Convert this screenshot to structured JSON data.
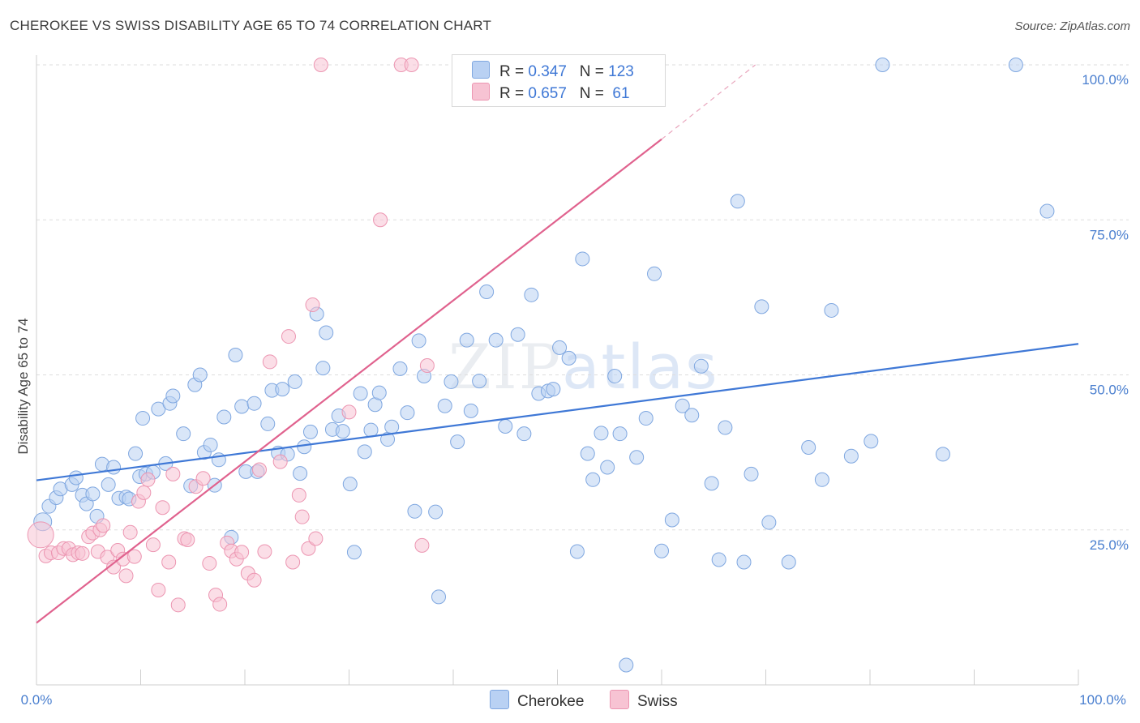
{
  "title": "CHEROKEE VS SWISS DISABILITY AGE 65 TO 74 CORRELATION CHART",
  "source": "Source: ZipAtlas.com",
  "watermark": {
    "zip": "ZIP",
    "atlas": "atlas"
  },
  "legend_top": [
    {
      "r_label": "R = ",
      "r_value": "0.347",
      "n_label": "N = ",
      "n_value": "123",
      "fill": "#b9d1f3",
      "stroke": "#7fa7e0"
    },
    {
      "r_label": "R = ",
      "r_value": "0.657",
      "n_label": "N = ",
      "n_value": " 61",
      "fill": "#f7c3d3",
      "stroke": "#ec95b1"
    }
  ],
  "chart_data": {
    "type": "scatter",
    "title": "CHEROKEE VS SWISS DISABILITY AGE 65 TO 74 CORRELATION CHART",
    "xlabel": "",
    "ylabel": "Disability Age 65 to 74",
    "xlim": [
      0,
      100
    ],
    "ylim": [
      0,
      100
    ],
    "x_tick_labels": [
      "0.0%",
      "100.0%"
    ],
    "y_tick_labels": [
      "25.0%",
      "50.0%",
      "75.0%",
      "100.0%"
    ],
    "y_ticks": [
      25,
      50,
      75,
      100
    ],
    "grid": "horizontal dashed",
    "legend": "bottom-center",
    "series": [
      {
        "name": "Cherokee",
        "color": "#3f78d6",
        "fill": "#b9d1f3",
        "r": "0.347",
        "n": "123",
        "trend": {
          "x": [
            0,
            100
          ],
          "y": [
            33.0,
            55.0
          ]
        },
        "points": [
          [
            0.6,
            26.3
          ],
          [
            1.2,
            28.8
          ],
          [
            1.9,
            30.2
          ],
          [
            2.3,
            31.6
          ],
          [
            3.4,
            32.3
          ],
          [
            3.8,
            33.4
          ],
          [
            4.4,
            30.6
          ],
          [
            4.8,
            29.2
          ],
          [
            5.4,
            30.8
          ],
          [
            5.8,
            27.2
          ],
          [
            6.3,
            35.6
          ],
          [
            6.9,
            32.3
          ],
          [
            7.4,
            35.1
          ],
          [
            7.9,
            30.1
          ],
          [
            8.6,
            30.3
          ],
          [
            8.9,
            30.0
          ],
          [
            9.5,
            37.3
          ],
          [
            9.9,
            33.6
          ],
          [
            10.2,
            43.0
          ],
          [
            10.5,
            34.0
          ],
          [
            11.2,
            34.3
          ],
          [
            11.7,
            44.5
          ],
          [
            12.4,
            35.7
          ],
          [
            12.8,
            45.4
          ],
          [
            13.1,
            46.6
          ],
          [
            14.1,
            40.5
          ],
          [
            14.8,
            32.1
          ],
          [
            15.2,
            48.4
          ],
          [
            15.7,
            50.0
          ],
          [
            16.1,
            37.5
          ],
          [
            16.7,
            38.7
          ],
          [
            17.1,
            32.2
          ],
          [
            17.5,
            36.3
          ],
          [
            18.0,
            43.2
          ],
          [
            18.7,
            23.8
          ],
          [
            19.1,
            53.2
          ],
          [
            19.7,
            44.9
          ],
          [
            20.1,
            34.4
          ],
          [
            20.9,
            45.4
          ],
          [
            21.2,
            34.4
          ],
          [
            22.2,
            42.1
          ],
          [
            22.6,
            47.5
          ],
          [
            23.2,
            37.4
          ],
          [
            23.6,
            47.7
          ],
          [
            24.1,
            37.2
          ],
          [
            24.8,
            48.9
          ],
          [
            25.3,
            34.1
          ],
          [
            25.7,
            38.4
          ],
          [
            26.3,
            40.8
          ],
          [
            26.9,
            59.8
          ],
          [
            27.5,
            51.1
          ],
          [
            27.8,
            56.8
          ],
          [
            28.4,
            41.2
          ],
          [
            29.0,
            43.4
          ],
          [
            29.4,
            40.9
          ],
          [
            30.1,
            32.4
          ],
          [
            30.5,
            21.4
          ],
          [
            31.1,
            47.0
          ],
          [
            31.5,
            37.6
          ],
          [
            32.1,
            41.1
          ],
          [
            32.5,
            45.2
          ],
          [
            32.9,
            47.1
          ],
          [
            33.7,
            39.6
          ],
          [
            34.1,
            41.6
          ],
          [
            34.9,
            51.0
          ],
          [
            35.6,
            43.9
          ],
          [
            36.3,
            28.0
          ],
          [
            36.7,
            55.5
          ],
          [
            37.2,
            49.8
          ],
          [
            38.3,
            27.9
          ],
          [
            38.6,
            14.2
          ],
          [
            39.2,
            45.0
          ],
          [
            39.8,
            48.9
          ],
          [
            40.4,
            39.2
          ],
          [
            41.3,
            55.6
          ],
          [
            41.7,
            44.2
          ],
          [
            42.5,
            49.0
          ],
          [
            43.2,
            63.4
          ],
          [
            44.1,
            55.6
          ],
          [
            45.0,
            41.7
          ],
          [
            46.2,
            56.5
          ],
          [
            46.8,
            40.5
          ],
          [
            47.5,
            62.9
          ],
          [
            48.2,
            47.0
          ],
          [
            49.1,
            47.4
          ],
          [
            49.6,
            47.7
          ],
          [
            50.2,
            54.4
          ],
          [
            51.1,
            52.7
          ],
          [
            51.9,
            21.5
          ],
          [
            52.4,
            68.7
          ],
          [
            52.9,
            37.3
          ],
          [
            53.4,
            33.1
          ],
          [
            54.2,
            40.6
          ],
          [
            54.8,
            35.1
          ],
          [
            55.5,
            49.8
          ],
          [
            56.0,
            40.5
          ],
          [
            56.6,
            3.2
          ],
          [
            57.6,
            36.7
          ],
          [
            58.5,
            43.0
          ],
          [
            59.3,
            66.3
          ],
          [
            60.0,
            21.6
          ],
          [
            61.0,
            26.6
          ],
          [
            62.0,
            45.0
          ],
          [
            62.9,
            43.5
          ],
          [
            63.8,
            51.4
          ],
          [
            64.8,
            32.5
          ],
          [
            65.5,
            20.2
          ],
          [
            66.1,
            41.5
          ],
          [
            67.3,
            78.0
          ],
          [
            67.9,
            19.8
          ],
          [
            68.6,
            34.0
          ],
          [
            69.6,
            61.0
          ],
          [
            70.3,
            26.2
          ],
          [
            72.2,
            19.8
          ],
          [
            74.1,
            38.3
          ],
          [
            75.4,
            33.1
          ],
          [
            76.3,
            60.4
          ],
          [
            78.2,
            36.9
          ],
          [
            80.1,
            39.3
          ],
          [
            81.2,
            100.0
          ],
          [
            87.0,
            37.2
          ],
          [
            94.0,
            100.0
          ],
          [
            97.0,
            76.4
          ]
        ]
      },
      {
        "name": "Swiss",
        "color": "#e0628e",
        "fill": "#f7c3d3",
        "r": "0.657",
        "n": "61",
        "trend": {
          "x": [
            0,
            60
          ],
          "y": [
            10.0,
            88.0
          ],
          "dashed_to": [
            69,
            100
          ]
        },
        "points": [
          [
            0.4,
            24.2
          ],
          [
            0.9,
            20.8
          ],
          [
            1.4,
            21.3
          ],
          [
            2.1,
            21.3
          ],
          [
            2.6,
            22.0
          ],
          [
            3.1,
            22.0
          ],
          [
            3.5,
            21.0
          ],
          [
            4.0,
            21.3
          ],
          [
            4.4,
            21.2
          ],
          [
            5.0,
            23.9
          ],
          [
            5.4,
            24.5
          ],
          [
            5.9,
            21.5
          ],
          [
            6.1,
            25.0
          ],
          [
            6.4,
            25.7
          ],
          [
            6.8,
            20.6
          ],
          [
            7.4,
            19.0
          ],
          [
            7.8,
            21.7
          ],
          [
            8.3,
            20.3
          ],
          [
            8.6,
            17.6
          ],
          [
            9.0,
            24.6
          ],
          [
            9.4,
            20.7
          ],
          [
            9.8,
            29.6
          ],
          [
            10.3,
            31.0
          ],
          [
            10.7,
            33.1
          ],
          [
            11.2,
            22.6
          ],
          [
            11.7,
            15.3
          ],
          [
            12.1,
            28.6
          ],
          [
            12.7,
            19.8
          ],
          [
            13.1,
            34.0
          ],
          [
            13.6,
            12.9
          ],
          [
            14.2,
            23.6
          ],
          [
            14.5,
            23.4
          ],
          [
            15.3,
            32.0
          ],
          [
            16.0,
            33.3
          ],
          [
            16.6,
            19.6
          ],
          [
            17.2,
            14.5
          ],
          [
            17.6,
            13.0
          ],
          [
            18.3,
            22.9
          ],
          [
            18.7,
            21.6
          ],
          [
            19.2,
            20.3
          ],
          [
            19.7,
            21.4
          ],
          [
            20.3,
            18.0
          ],
          [
            20.9,
            16.9
          ],
          [
            21.4,
            34.7
          ],
          [
            21.9,
            21.5
          ],
          [
            22.4,
            52.1
          ],
          [
            23.4,
            36.0
          ],
          [
            24.2,
            56.2
          ],
          [
            24.6,
            19.8
          ],
          [
            25.2,
            30.6
          ],
          [
            25.5,
            27.1
          ],
          [
            26.1,
            22.0
          ],
          [
            26.5,
            61.3
          ],
          [
            26.8,
            23.6
          ],
          [
            27.3,
            100.0
          ],
          [
            30.0,
            44.0
          ],
          [
            33.0,
            75.0
          ],
          [
            35.0,
            100.0
          ],
          [
            36.0,
            100.0
          ],
          [
            37.0,
            22.5
          ],
          [
            37.5,
            51.5
          ]
        ]
      }
    ]
  },
  "bottom_legend": [
    {
      "label": "Cherokee",
      "fill": "#b9d1f3",
      "stroke": "#7fa7e0"
    },
    {
      "label": "Swiss",
      "fill": "#f7c3d3",
      "stroke": "#ec95b1"
    }
  ]
}
